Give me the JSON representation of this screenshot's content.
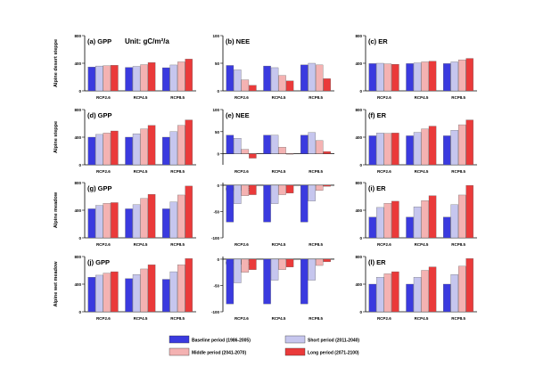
{
  "figure": {
    "unit_note": "Unit: gC/m²/a",
    "row_labels": [
      "Alpine desert steppe",
      "Alpine steppe",
      "Alpine meadow",
      "Alpine wet meadow"
    ],
    "legend": [
      {
        "label": "Baseline period (1986-2005)",
        "color": "#3a3adf"
      },
      {
        "label": "Short period (2011-2040)",
        "color": "#c6c6ee"
      },
      {
        "label": "Middle period (2041-2070)",
        "color": "#f4b2b2"
      },
      {
        "label": "Long period (2071-2100)",
        "color": "#ea3a3a"
      }
    ]
  },
  "chart_data": [
    {
      "type": "bar",
      "title": "(a) GPP",
      "categories": [
        "RCP2.6",
        "RCP4.5",
        "RCP8.5"
      ],
      "ylim": [
        0,
        800
      ],
      "yticks": [
        "0",
        "400",
        "800"
      ],
      "series": [
        {
          "values": [
            345,
            340,
            335
          ]
        },
        {
          "values": [
            360,
            355,
            375
          ]
        },
        {
          "values": [
            365,
            380,
            420
          ]
        },
        {
          "values": [
            370,
            410,
            460
          ]
        }
      ]
    },
    {
      "type": "bar",
      "title": "(b) NEE",
      "categories": [
        "RCP2.6",
        "RCP4.5",
        "RCP8.5"
      ],
      "ylim": [
        0,
        100
      ],
      "yticks": [
        "0",
        "50",
        "100"
      ],
      "series": [
        {
          "values": [
            46,
            45,
            47
          ]
        },
        {
          "values": [
            38,
            42,
            50
          ]
        },
        {
          "values": [
            20,
            28,
            47
          ]
        },
        {
          "values": [
            10,
            18,
            22
          ]
        }
      ]
    },
    {
      "type": "bar",
      "title": "(c) ER",
      "categories": [
        "RCP2.6",
        "RCP4.5",
        "RCP8.5"
      ],
      "ylim": [
        0,
        800
      ],
      "yticks": [
        "0",
        "400",
        "800"
      ],
      "series": [
        {
          "values": [
            395,
            395,
            395
          ]
        },
        {
          "values": [
            400,
            405,
            420
          ]
        },
        {
          "values": [
            392,
            420,
            450
          ]
        },
        {
          "values": [
            385,
            430,
            470
          ]
        }
      ]
    },
    {
      "type": "bar",
      "title": "(d) GPP",
      "categories": [
        "RCP2.6",
        "RCP4.5",
        "RCP8.5"
      ],
      "ylim": [
        0,
        800
      ],
      "yticks": [
        "0",
        "400",
        "800"
      ],
      "series": [
        {
          "values": [
            400,
            400,
            400
          ]
        },
        {
          "values": [
            440,
            450,
            480
          ]
        },
        {
          "values": [
            460,
            520,
            570
          ]
        },
        {
          "values": [
            490,
            570,
            650
          ]
        }
      ]
    },
    {
      "type": "bar",
      "title": "(e) NEE",
      "categories": [
        "RCP2.6",
        "RCP4.5",
        "RCP8.5"
      ],
      "ylim": [
        -25,
        100
      ],
      "yticks": [
        "0",
        "50",
        "100"
      ],
      "series": [
        {
          "values": [
            42,
            42,
            42
          ]
        },
        {
          "values": [
            35,
            42,
            48
          ]
        },
        {
          "values": [
            10,
            15,
            30
          ]
        },
        {
          "values": [
            -10,
            0,
            5
          ]
        }
      ]
    },
    {
      "type": "bar",
      "title": "(f) ER",
      "categories": [
        "RCP2.6",
        "RCP4.5",
        "RCP8.5"
      ],
      "ylim": [
        0,
        800
      ],
      "yticks": [
        "0",
        "400",
        "800"
      ],
      "series": [
        {
          "values": [
            420,
            420,
            420
          ]
        },
        {
          "values": [
            460,
            470,
            500
          ]
        },
        {
          "values": [
            455,
            520,
            580
          ]
        },
        {
          "values": [
            460,
            560,
            650
          ]
        }
      ]
    },
    {
      "type": "bar",
      "title": "(g) GPP",
      "categories": [
        "RCP2.6",
        "RCP4.5",
        "RCP8.5"
      ],
      "ylim": [
        0,
        800
      ],
      "yticks": [
        "0",
        "400",
        "800"
      ],
      "series": [
        {
          "values": [
            420,
            420,
            420
          ]
        },
        {
          "values": [
            470,
            480,
            520
          ]
        },
        {
          "values": [
            500,
            570,
            620
          ]
        },
        {
          "values": [
            510,
            630,
            750
          ]
        }
      ]
    },
    {
      "type": "bar",
      "title": "(h) NEE",
      "categories": [
        "RCP2.6",
        "RCP4.5",
        "RCP8.5"
      ],
      "ylim": [
        -100,
        5
      ],
      "yticks": [
        "0",
        "-50",
        "-100"
      ],
      "series": [
        {
          "values": [
            -70,
            -70,
            -70
          ]
        },
        {
          "values": [
            -35,
            -35,
            -30
          ]
        },
        {
          "values": [
            -20,
            -18,
            -10
          ]
        },
        {
          "values": [
            -18,
            -15,
            -2
          ]
        }
      ]
    },
    {
      "type": "bar",
      "title": "(i) ER",
      "categories": [
        "RCP2.6",
        "RCP4.5",
        "RCP8.5"
      ],
      "ylim": [
        0,
        800
      ],
      "yticks": [
        "0",
        "400",
        "800"
      ],
      "series": [
        {
          "values": [
            300,
            300,
            300
          ]
        },
        {
          "values": [
            440,
            450,
            480
          ]
        },
        {
          "values": [
            500,
            540,
            620
          ]
        },
        {
          "values": [
            530,
            610,
            760
          ]
        }
      ]
    },
    {
      "type": "bar",
      "title": "(j) GPP",
      "categories": [
        "RCP2.6",
        "RCP4.5",
        "RCP8.5"
      ],
      "ylim": [
        0,
        800
      ],
      "yticks": [
        "0",
        "400",
        "800"
      ],
      "series": [
        {
          "values": [
            500,
            480,
            470
          ]
        },
        {
          "values": [
            530,
            540,
            580
          ]
        },
        {
          "values": [
            560,
            620,
            680
          ]
        },
        {
          "values": [
            580,
            680,
            770
          ]
        }
      ]
    },
    {
      "type": "bar",
      "title": "(k) NEE",
      "categories": [
        "RCP2.6",
        "RCP4.5",
        "RCP8.5"
      ],
      "ylim": [
        -100,
        5
      ],
      "yticks": [
        "0",
        "-50",
        "-100"
      ],
      "series": [
        {
          "values": [
            -85,
            -85,
            -85
          ]
        },
        {
          "values": [
            -45,
            -40,
            -40
          ]
        },
        {
          "values": [
            -25,
            -20,
            -12
          ]
        },
        {
          "values": [
            -20,
            -15,
            -5
          ]
        }
      ]
    },
    {
      "type": "bar",
      "title": "(l) ER",
      "categories": [
        "RCP2.6",
        "RCP4.5",
        "RCP8.5"
      ],
      "ylim": [
        0,
        800
      ],
      "yticks": [
        "0",
        "400",
        "800"
      ],
      "series": [
        {
          "values": [
            400,
            400,
            400
          ]
        },
        {
          "values": [
            500,
            500,
            540
          ]
        },
        {
          "values": [
            550,
            600,
            660
          ]
        },
        {
          "values": [
            580,
            650,
            770
          ]
        }
      ]
    }
  ]
}
